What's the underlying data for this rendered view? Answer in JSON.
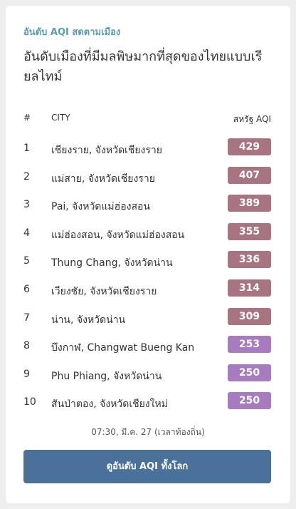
{
  "header": {
    "subtitle": "อันดับ AQI สดตามเมือง",
    "title": "อันดับเมืองที่มีมลพิษมากที่สุดของไทยแบบเรียลไทม์"
  },
  "table": {
    "headers": [
      "#",
      "CITY",
      "สหรัฐ AQI"
    ],
    "rows": [
      {
        "rank": "1",
        "city": "เชียงราย, จังหวัดเชียงราย",
        "aqi": 429,
        "color": "#a87480"
      },
      {
        "rank": "2",
        "city": "แม่สาย, จังหวัดเชียงราย",
        "aqi": 407,
        "color": "#a87480"
      },
      {
        "rank": "3",
        "city": "Pai, จังหวัดแม่ฮ่องสอน",
        "aqi": 389,
        "color": "#a87480"
      },
      {
        "rank": "4",
        "city": "แม่ฮ่องสอน, จังหวัดแม่ฮ่องสอน",
        "aqi": 355,
        "color": "#a87480"
      },
      {
        "rank": "5",
        "city": "Thung Chang, จังหวัดน่าน",
        "aqi": 336,
        "color": "#a87480"
      },
      {
        "rank": "6",
        "city": "เวียงชัย, จังหวัดเชียงราย",
        "aqi": 314,
        "color": "#a87480"
      },
      {
        "rank": "7",
        "city": "น่าน, จังหวัดน่าน",
        "aqi": 309,
        "color": "#a87480"
      },
      {
        "rank": "8",
        "city": "บึงกาฬ, Changwat Bueng Kan",
        "aqi": 253,
        "color": "#a77bc0"
      },
      {
        "rank": "9",
        "city": "Phu Phiang, จังหวัดน่าน",
        "aqi": 250,
        "color": "#a77bc0"
      },
      {
        "rank": "10",
        "city": "สันป่าตอง, จังหวัดเชียงใหม่",
        "aqi": 250,
        "color": "#a77bc0"
      }
    ]
  },
  "footer": {
    "timestamp": "07:30, มี.ค. 27 (เวลาท้องถิ่น)",
    "button": "ดูอันดับ AQI ทั้งโลก"
  }
}
